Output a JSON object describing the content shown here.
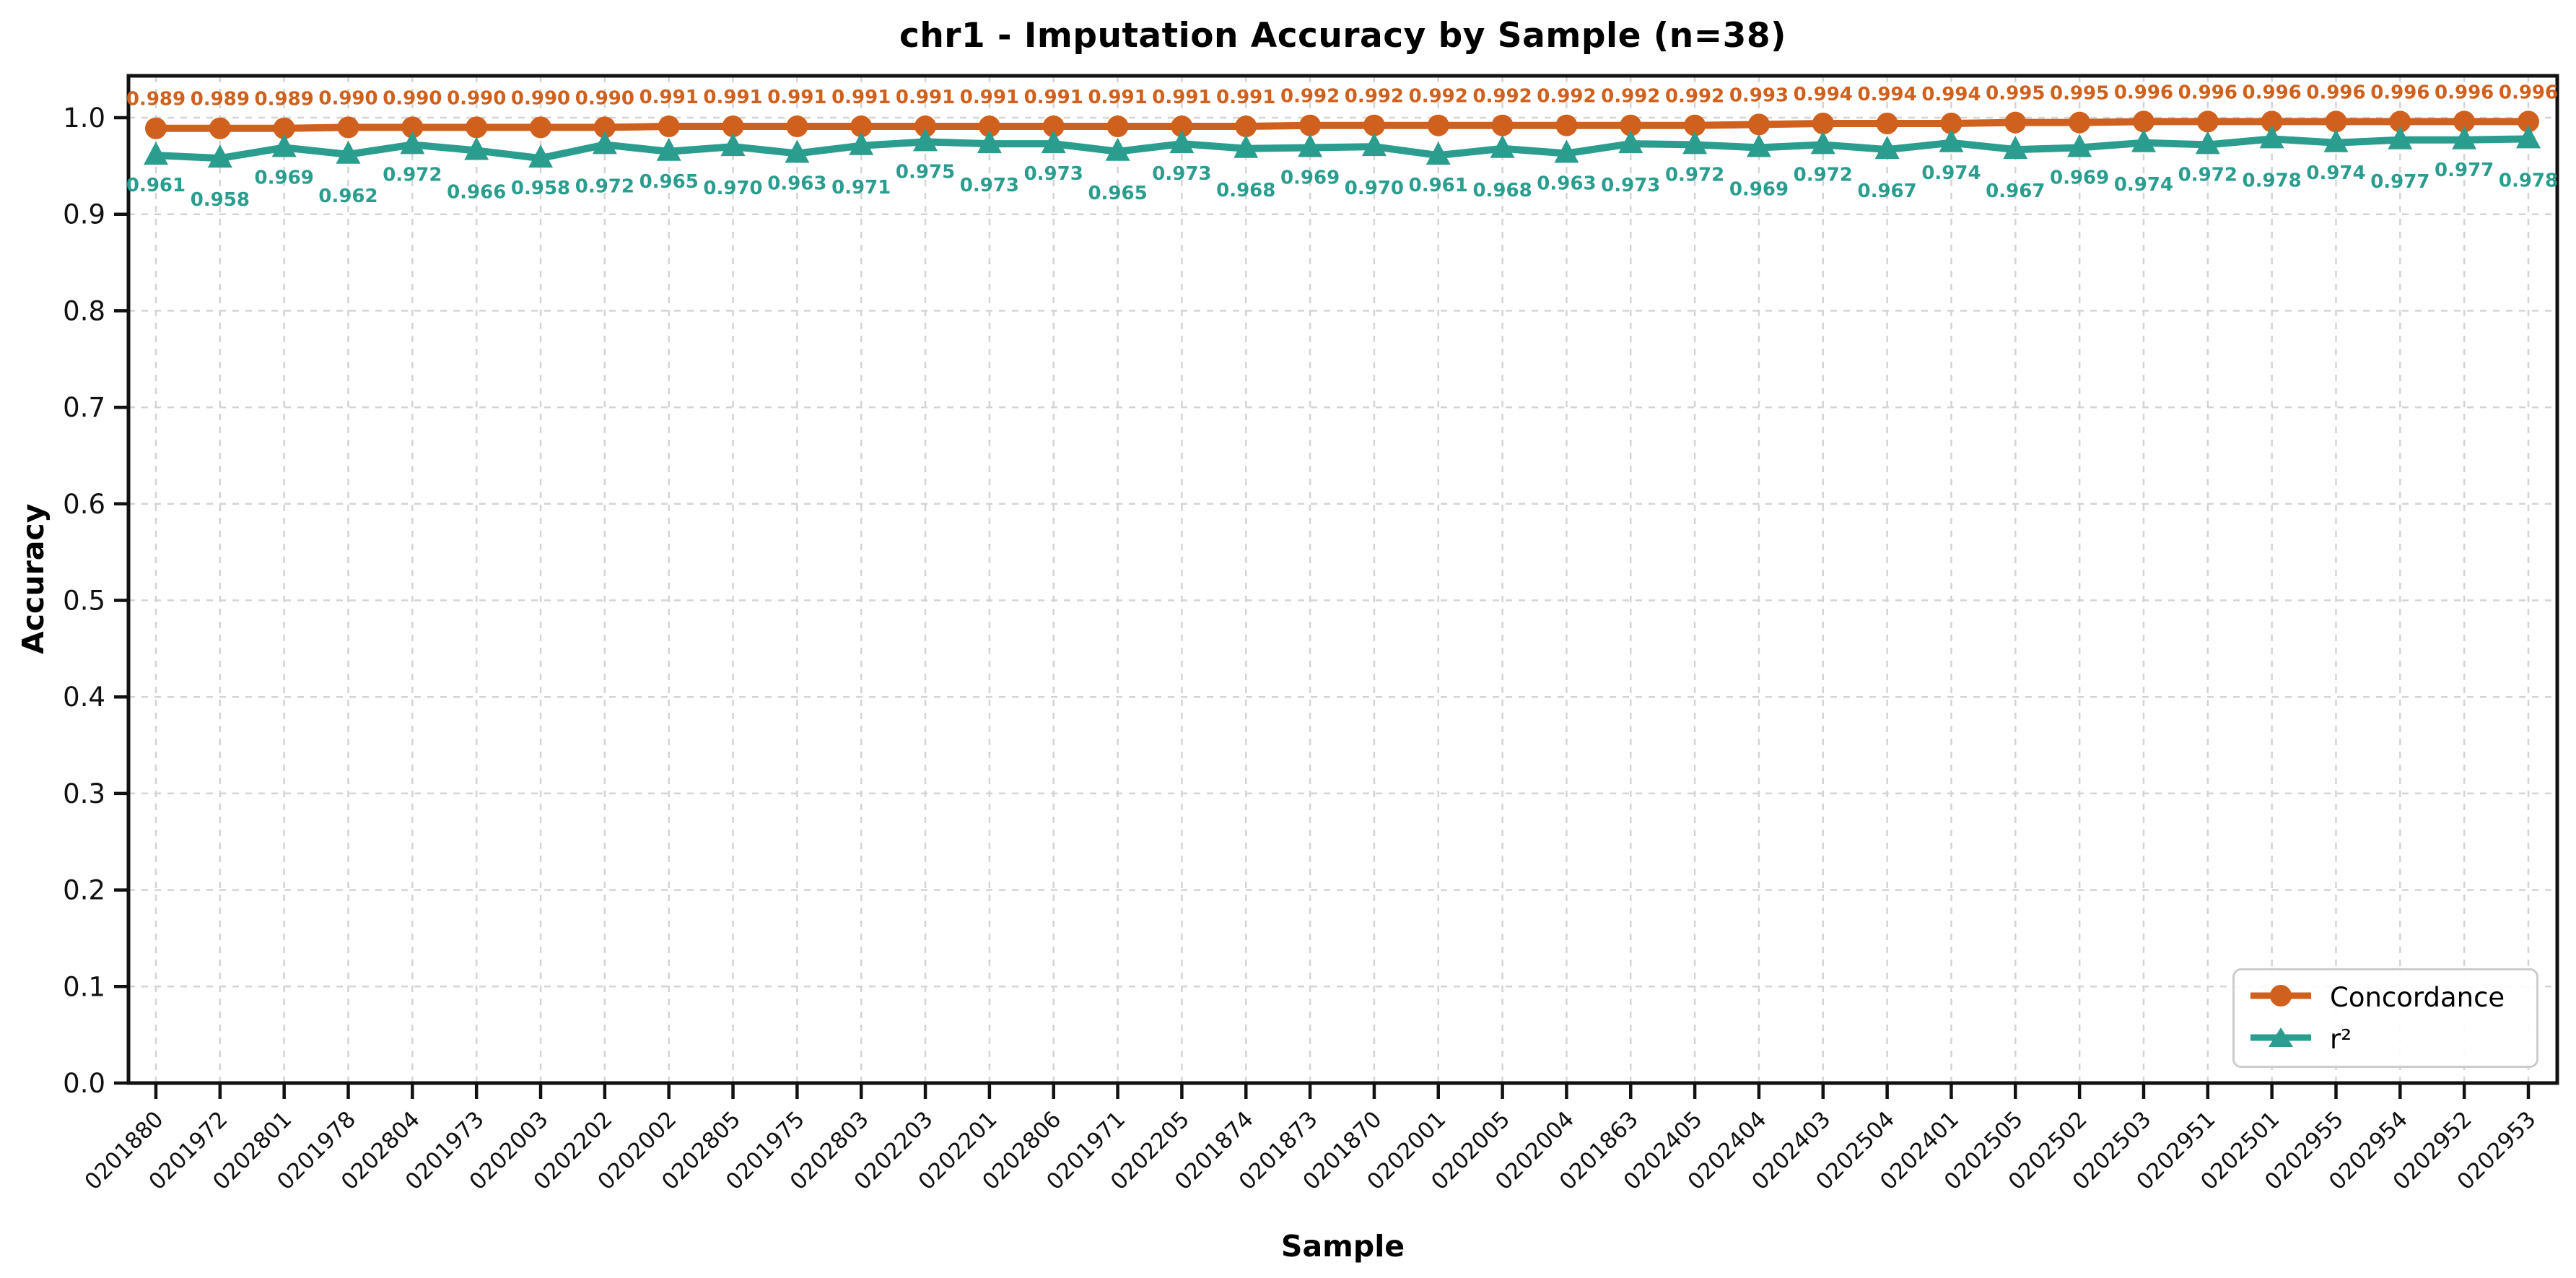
{
  "title": "chr1 - Imputation Accuracy by Sample (n=38)",
  "chart_data": {
    "type": "line",
    "title": "chr1 - Imputation Accuracy by Sample (n=38)",
    "xlabel": "Sample",
    "ylabel": "Accuracy",
    "ylim": [
      0.0,
      1.043
    ],
    "yticks": [
      0.0,
      0.1,
      0.2,
      0.3,
      0.4,
      0.5,
      0.6,
      0.7,
      0.8,
      0.9,
      1.0
    ],
    "grid": true,
    "grid_style": "dashed",
    "legend_position": "lower right",
    "point_labels": true,
    "point_label_decimals": 3,
    "categories": [
      "0201880",
      "0201972",
      "0202801",
      "0201978",
      "0202804",
      "0201973",
      "0202003",
      "0202202",
      "0202002",
      "0202805",
      "0201975",
      "0202803",
      "0202203",
      "0202201",
      "0202806",
      "0201971",
      "0202205",
      "0201874",
      "0201873",
      "0201870",
      "0202001",
      "0202005",
      "0202004",
      "0201863",
      "0202405",
      "0202404",
      "0202403",
      "0202504",
      "0202401",
      "0202505",
      "0202502",
      "0202503",
      "0202951",
      "0202501",
      "0202955",
      "0202954",
      "0202952",
      "0202953"
    ],
    "series": [
      {
        "name": "Concordance",
        "marker": "circle",
        "color": "#d0601d",
        "values": [
          0.989,
          0.989,
          0.989,
          0.99,
          0.99,
          0.99,
          0.99,
          0.99,
          0.991,
          0.991,
          0.991,
          0.991,
          0.991,
          0.991,
          0.991,
          0.991,
          0.991,
          0.991,
          0.992,
          0.992,
          0.992,
          0.992,
          0.992,
          0.992,
          0.992,
          0.993,
          0.994,
          0.994,
          0.994,
          0.995,
          0.995,
          0.996,
          0.996,
          0.996,
          0.996,
          0.996,
          0.996,
          0.996
        ]
      },
      {
        "name": "r²",
        "marker": "triangle",
        "color": "#2a9d8f",
        "values": [
          0.961,
          0.958,
          0.969,
          0.962,
          0.972,
          0.966,
          0.958,
          0.972,
          0.965,
          0.97,
          0.963,
          0.971,
          0.975,
          0.973,
          0.973,
          0.965,
          0.973,
          0.968,
          0.969,
          0.97,
          0.961,
          0.968,
          0.963,
          0.973,
          0.972,
          0.969,
          0.972,
          0.967,
          0.974,
          0.967,
          0.969,
          0.974,
          0.972,
          0.978,
          0.974,
          0.977,
          0.977,
          0.978
        ]
      }
    ]
  },
  "colors": {
    "concordance": "#d0601d",
    "r2": "#2a9d8f",
    "grid": "#d4d4d4",
    "axis": "#111111"
  }
}
